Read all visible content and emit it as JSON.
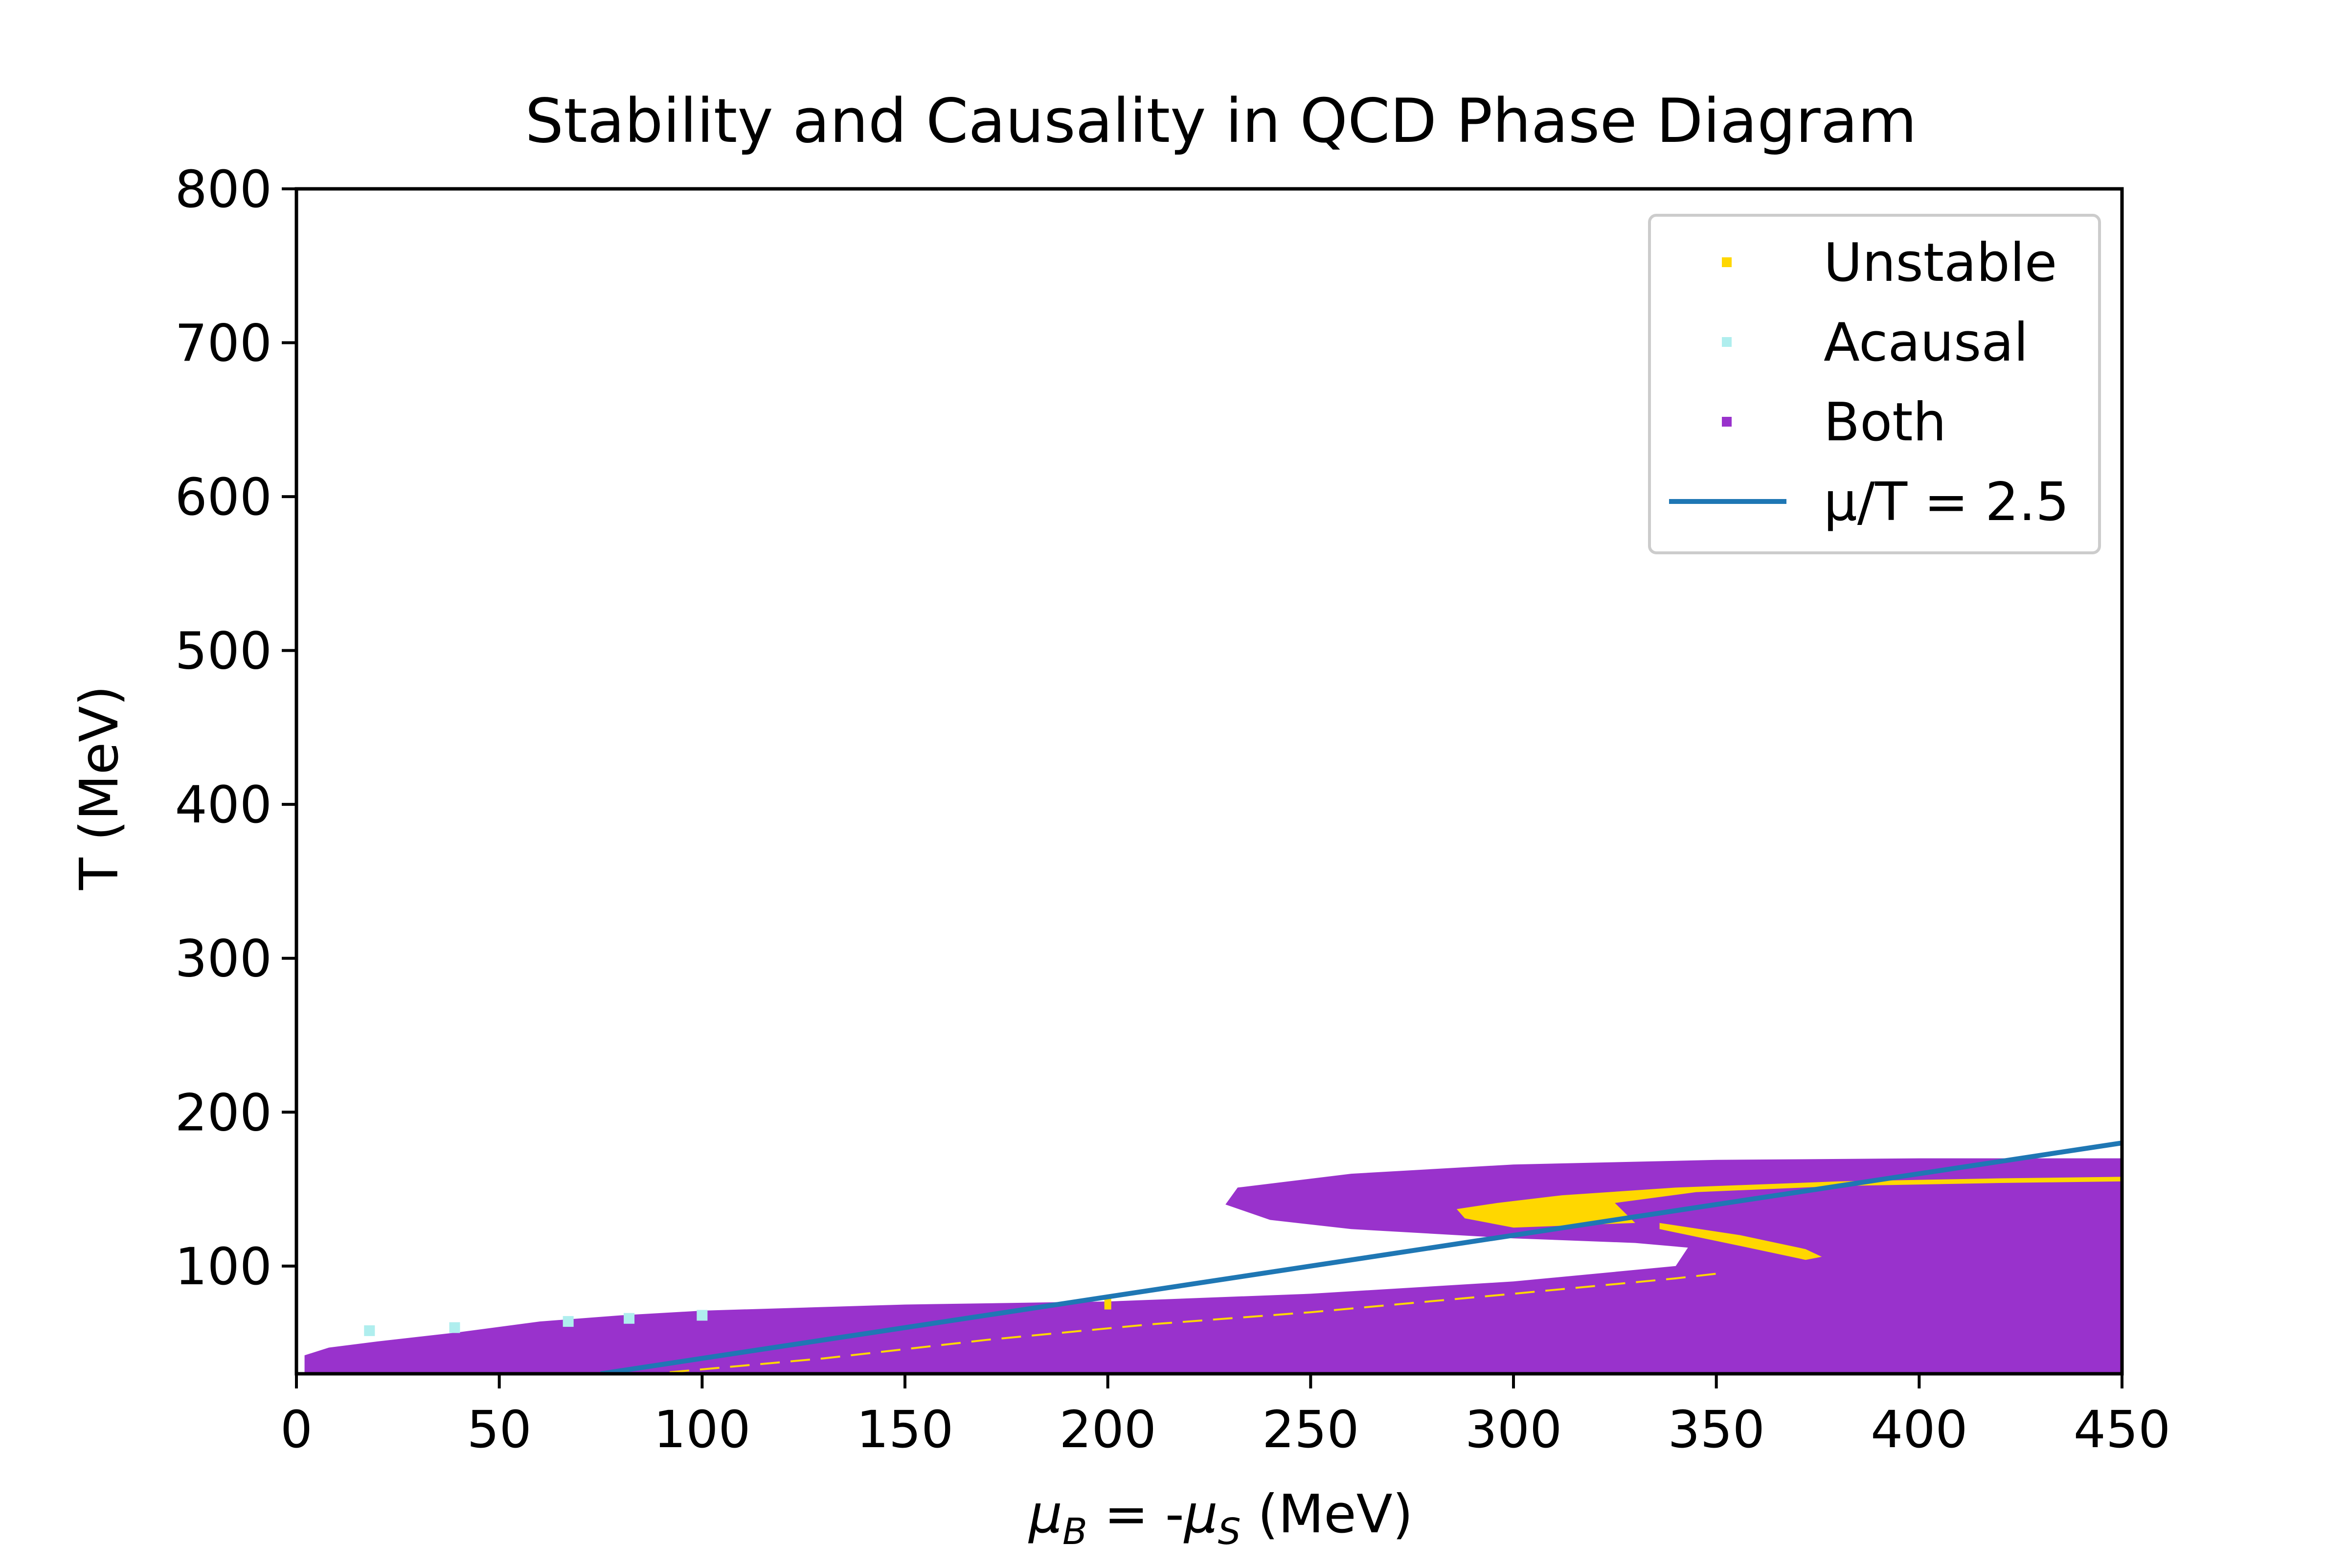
{
  "chart_data": {
    "type": "scatter",
    "title": "Stability and Causality in QCD Phase Diagram",
    "xlabel": {
      "mu": "μ",
      "sub1": "B",
      "middle": " = -",
      "sub2": "S",
      "tail": " (MeV)"
    },
    "ylabel": "T (MeV)",
    "xlim": [
      0,
      450
    ],
    "ylim": [
      30,
      800
    ],
    "xticks": [
      0,
      50,
      100,
      150,
      200,
      250,
      300,
      350,
      400,
      450
    ],
    "yticks": [
      100,
      200,
      300,
      400,
      500,
      600,
      700,
      800
    ],
    "grid": false,
    "legend_position": "top-right",
    "colors": {
      "unstable": "#ffd700",
      "acausal": "#afeeee",
      "both": "#9932cc",
      "line": "#1f77b4"
    },
    "series": [
      {
        "name": "Unstable",
        "kind": "region",
        "color": "#ffd700",
        "polygons": [
          [
            [
              286,
              137
            ],
            [
              296,
              141
            ],
            [
              312,
              146
            ],
            [
              340,
              151
            ],
            [
              380,
              155
            ],
            [
              420,
              157
            ],
            [
              450,
              158
            ],
            [
              450,
              155
            ],
            [
              420,
              154
            ],
            [
              380,
              152
            ],
            [
              345,
              148
            ],
            [
              325,
              141
            ],
            [
              330,
              128
            ],
            [
              300,
              125
            ],
            [
              288,
              131
            ]
          ],
          [
            [
              336,
              128
            ],
            [
              356,
              120
            ],
            [
              372,
              111
            ],
            [
              376,
              106
            ],
            [
              372,
              104
            ],
            [
              356,
              113
            ],
            [
              336,
              124
            ]
          ]
        ],
        "x": [
          200,
          200
        ],
        "y": [
          74,
          77
        ]
      },
      {
        "name": "Acausal",
        "kind": "points",
        "color": "#afeeee",
        "x": [
          18,
          39,
          67,
          82,
          100
        ],
        "y": [
          58,
          60,
          64,
          66,
          68
        ]
      },
      {
        "name": "Both",
        "kind": "region",
        "color": "#9932cc",
        "polygons": [
          [
            [
              2,
              30
            ],
            [
              2,
              42
            ],
            [
              8,
              47
            ],
            [
              20,
              51
            ],
            [
              40,
              57
            ],
            [
              60,
              64
            ],
            [
              80,
              68
            ],
            [
              100,
              71
            ],
            [
              150,
              75
            ],
            [
              200,
              77
            ],
            [
              250,
              82
            ],
            [
              300,
              90
            ],
            [
              340,
              100
            ],
            [
              343,
              112
            ],
            [
              330,
              115
            ],
            [
              300,
              118
            ],
            [
              260,
              124
            ],
            [
              240,
              130
            ],
            [
              229,
              140
            ],
            [
              232,
              151
            ],
            [
              260,
              160
            ],
            [
              300,
              166
            ],
            [
              350,
              169
            ],
            [
              400,
              170
            ],
            [
              450,
              170
            ],
            [
              450,
              30
            ]
          ]
        ]
      },
      {
        "name": "μ/T = 2.5",
        "kind": "line",
        "color": "#1f77b4",
        "x": [
          75,
          450
        ],
        "y": [
          30,
          180
        ]
      }
    ]
  }
}
